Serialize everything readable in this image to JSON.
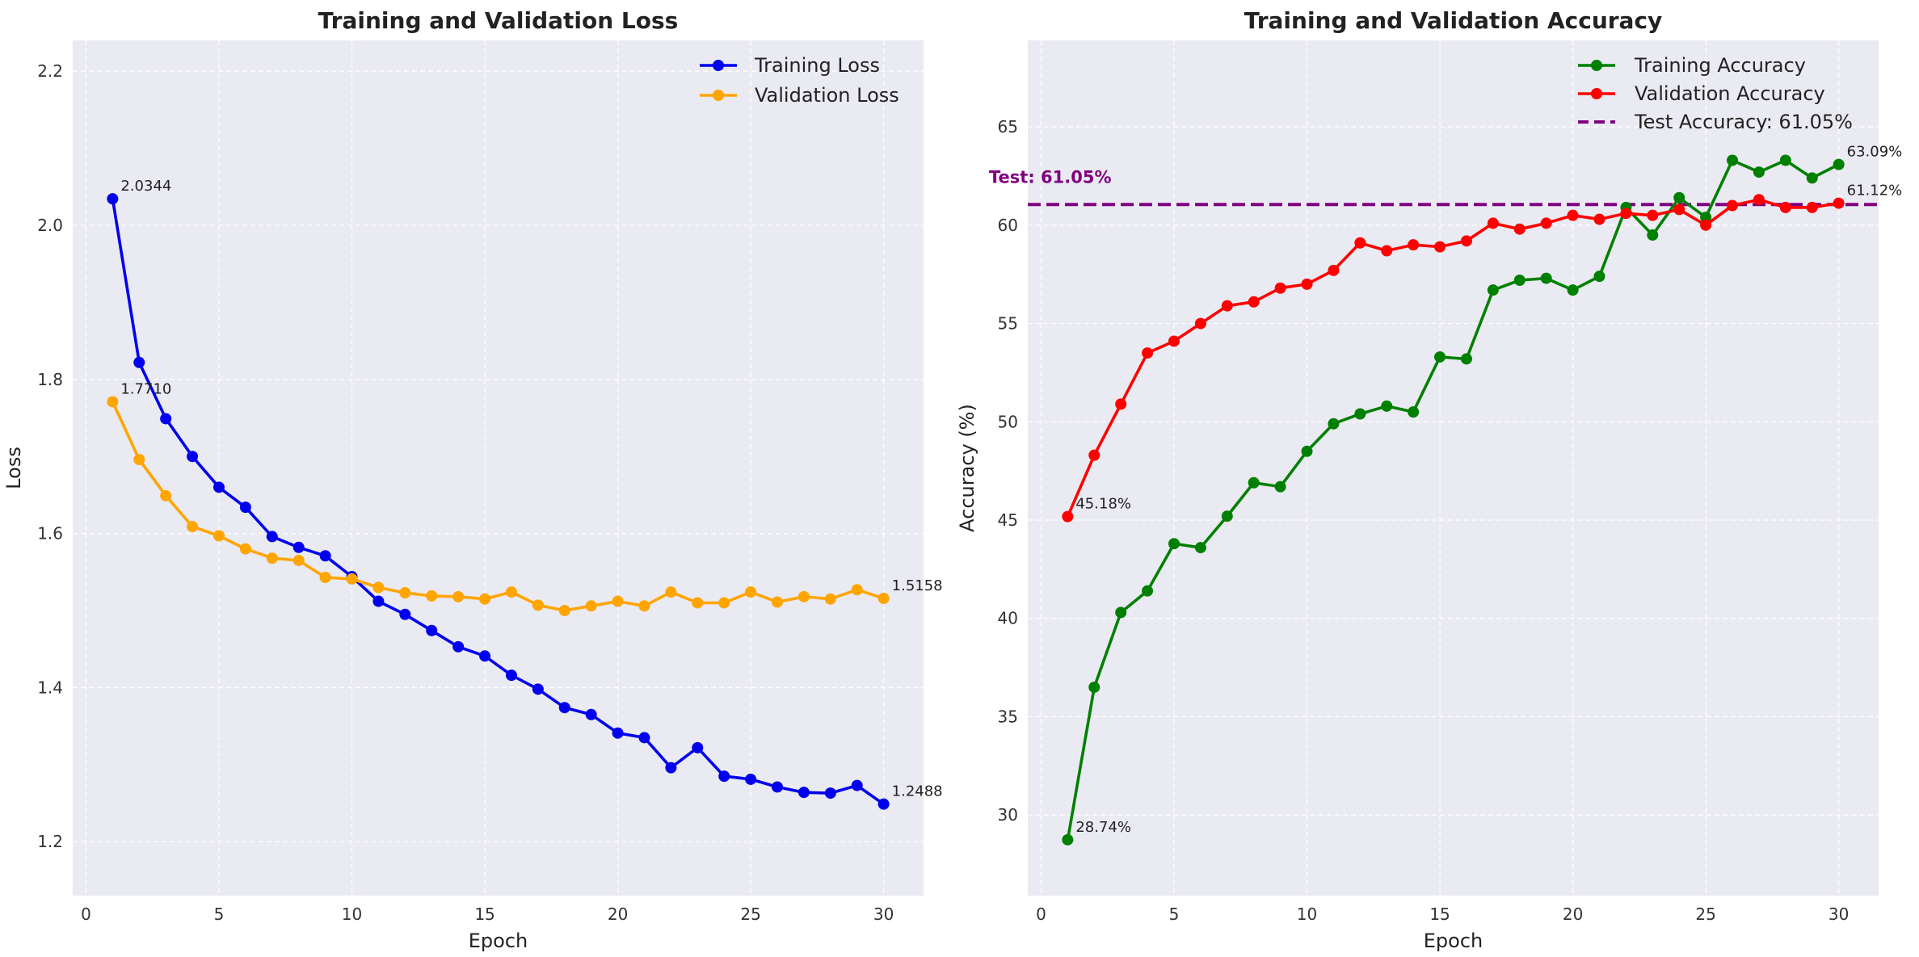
{
  "chart_data": [
    {
      "type": "line",
      "title": "Training and Validation Loss",
      "xlabel": "Epoch",
      "ylabel": "Loss",
      "xlim": [
        -0.5,
        31.5
      ],
      "ylim": [
        1.13,
        2.24
      ],
      "xticks": [
        0,
        5,
        10,
        15,
        20,
        25,
        30
      ],
      "yticks": [
        1.2,
        1.4,
        1.6,
        1.8,
        2.0,
        2.2
      ],
      "ytick_labels": [
        "1.2",
        "1.4",
        "1.6",
        "1.8",
        "2.0",
        "2.2"
      ],
      "grid": true,
      "legend_position": "top-right",
      "x": [
        1,
        2,
        3,
        4,
        5,
        6,
        7,
        8,
        9,
        10,
        11,
        12,
        13,
        14,
        15,
        16,
        17,
        18,
        19,
        20,
        21,
        22,
        23,
        24,
        25,
        26,
        27,
        28,
        29,
        30
      ],
      "series": [
        {
          "name": "Training Loss",
          "color": "#0000ee",
          "values": [
            2.0344,
            1.822,
            1.749,
            1.7,
            1.66,
            1.634,
            1.596,
            1.582,
            1.571,
            1.544,
            1.512,
            1.495,
            1.474,
            1.453,
            1.441,
            1.416,
            1.398,
            1.374,
            1.365,
            1.341,
            1.335,
            1.296,
            1.322,
            1.285,
            1.281,
            1.271,
            1.264,
            1.263,
            1.273,
            1.2488
          ]
        },
        {
          "name": "Validation Loss",
          "color": "#ffa500",
          "values": [
            1.771,
            1.696,
            1.649,
            1.609,
            1.597,
            1.58,
            1.568,
            1.565,
            1.543,
            1.541,
            1.53,
            1.523,
            1.519,
            1.518,
            1.515,
            1.524,
            1.507,
            1.5,
            1.506,
            1.512,
            1.506,
            1.524,
            1.51,
            1.51,
            1.524,
            1.511,
            1.518,
            1.515,
            1.527,
            1.5158
          ]
        }
      ],
      "annotations": [
        {
          "x": 1,
          "y": 2.0344,
          "text": "2.0344"
        },
        {
          "x": 1,
          "y": 1.771,
          "text": "1.7710"
        },
        {
          "x": 30,
          "y": 1.2488,
          "text": "1.2488"
        },
        {
          "x": 30,
          "y": 1.5158,
          "text": "1.5158"
        }
      ]
    },
    {
      "type": "line",
      "title": "Training and Validation Accuracy",
      "xlabel": "Epoch",
      "ylabel": "Accuracy (%)",
      "xlim": [
        -0.5,
        31.5
      ],
      "ylim": [
        25.9,
        69.4
      ],
      "xticks": [
        0,
        5,
        10,
        15,
        20,
        25,
        30
      ],
      "yticks": [
        30,
        35,
        40,
        45,
        50,
        55,
        60,
        65
      ],
      "ytick_labels": [
        "30",
        "35",
        "40",
        "45",
        "50",
        "55",
        "60",
        "65"
      ],
      "grid": true,
      "legend_position": "top-right",
      "x": [
        1,
        2,
        3,
        4,
        5,
        6,
        7,
        8,
        9,
        10,
        11,
        12,
        13,
        14,
        15,
        16,
        17,
        18,
        19,
        20,
        21,
        22,
        23,
        24,
        25,
        26,
        27,
        28,
        29,
        30
      ],
      "series": [
        {
          "name": "Training Accuracy",
          "color": "#008000",
          "values": [
            28.74,
            36.5,
            40.3,
            41.4,
            43.8,
            43.6,
            45.2,
            46.9,
            46.7,
            48.5,
            49.9,
            50.4,
            50.8,
            50.5,
            53.3,
            53.2,
            56.7,
            57.2,
            57.3,
            56.7,
            57.4,
            60.9,
            59.5,
            61.4,
            60.4,
            63.3,
            62.7,
            63.3,
            62.4,
            63.09
          ]
        },
        {
          "name": "Validation Accuracy",
          "color": "#ff0000",
          "values": [
            45.18,
            48.3,
            50.9,
            53.5,
            54.1,
            55.0,
            55.9,
            56.1,
            56.8,
            57.0,
            57.7,
            59.1,
            58.7,
            59.0,
            58.9,
            59.2,
            60.1,
            59.8,
            60.1,
            60.5,
            60.3,
            60.6,
            60.5,
            60.8,
            60.0,
            61.0,
            61.3,
            60.9,
            60.9,
            61.12
          ]
        }
      ],
      "reference_line": {
        "name": "Test Accuracy: 61.05%",
        "y": 61.05,
        "color": "#800080",
        "style": "dashed"
      },
      "test_label": "Test: 61.05%",
      "annotations": [
        {
          "x": 1,
          "y": 28.74,
          "text": "28.74%"
        },
        {
          "x": 1,
          "y": 45.18,
          "text": "45.18%"
        },
        {
          "x": 30,
          "y": 63.09,
          "text": "63.09%"
        },
        {
          "x": 30,
          "y": 61.12,
          "text": "61.12%"
        }
      ]
    }
  ],
  "colors": {
    "plot_background": "#eaeaf2",
    "grid": "#ffffff",
    "figure_background": "#ffffff"
  }
}
